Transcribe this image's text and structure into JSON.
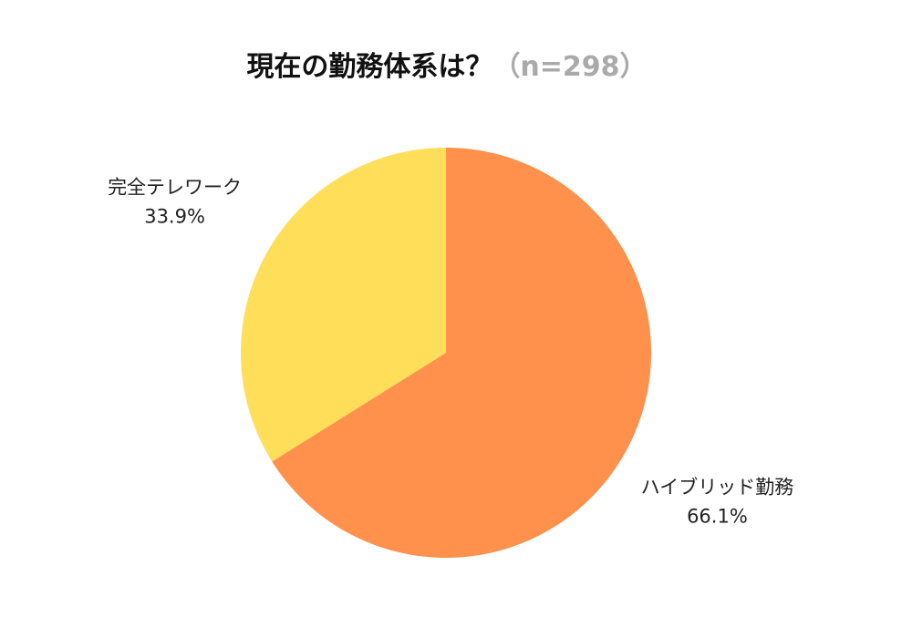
{
  "chart_data": {
    "type": "pie",
    "title": "現在の勤務体系は？",
    "subtitle": "（n=298）",
    "categories": [
      "ハイブリッド勤務",
      "完全テレワーク"
    ],
    "values": [
      66.1,
      33.9
    ],
    "value_labels": [
      "66.1%",
      "33.9%"
    ],
    "colors": [
      "#FF914D",
      "#FFDE59"
    ]
  }
}
